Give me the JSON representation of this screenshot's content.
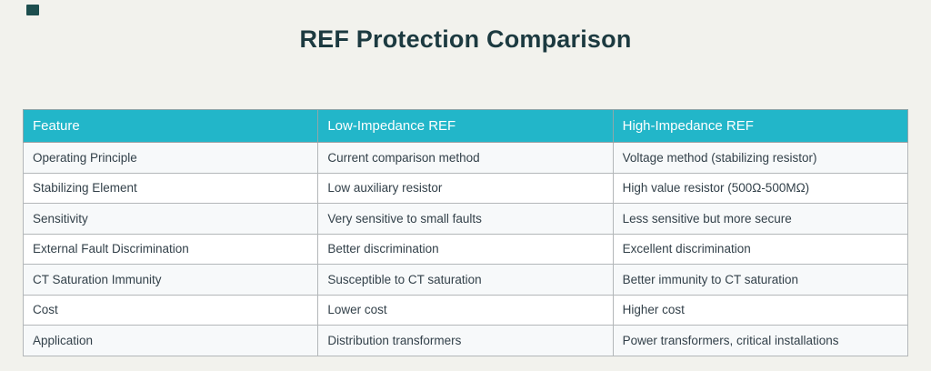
{
  "page": {
    "title": "REF Protection Comparison"
  },
  "colors": {
    "page_bg": "#f2f2ed",
    "title_text": "#1c3a40",
    "header_bg": "#22b6c9",
    "header_text": "#ffffff",
    "body_text": "#33414a",
    "border": "#b3b7b9",
    "row_alt_bg": "#f7f9fa",
    "row_bg": "#ffffff",
    "logo_mark": "#1d4e4e"
  },
  "table": {
    "columns": [
      "Feature",
      "Low-Impedance REF",
      "High-Impedance REF"
    ],
    "rows": [
      [
        "Operating Principle",
        "Current comparison method",
        "Voltage method (stabilizing resistor)"
      ],
      [
        "Stabilizing Element",
        "Low auxiliary resistor",
        "High value resistor (500Ω-500MΩ)"
      ],
      [
        "Sensitivity",
        "Very sensitive to small faults",
        "Less sensitive but more secure"
      ],
      [
        "External Fault Discrimination",
        "Better discrimination",
        "Excellent discrimination"
      ],
      [
        "CT Saturation Immunity",
        "Susceptible to CT saturation",
        "Better immunity to CT saturation"
      ],
      [
        "Cost",
        "Lower cost",
        "Higher cost"
      ],
      [
        "Application",
        "Distribution transformers",
        "Power transformers, critical installations"
      ]
    ]
  }
}
